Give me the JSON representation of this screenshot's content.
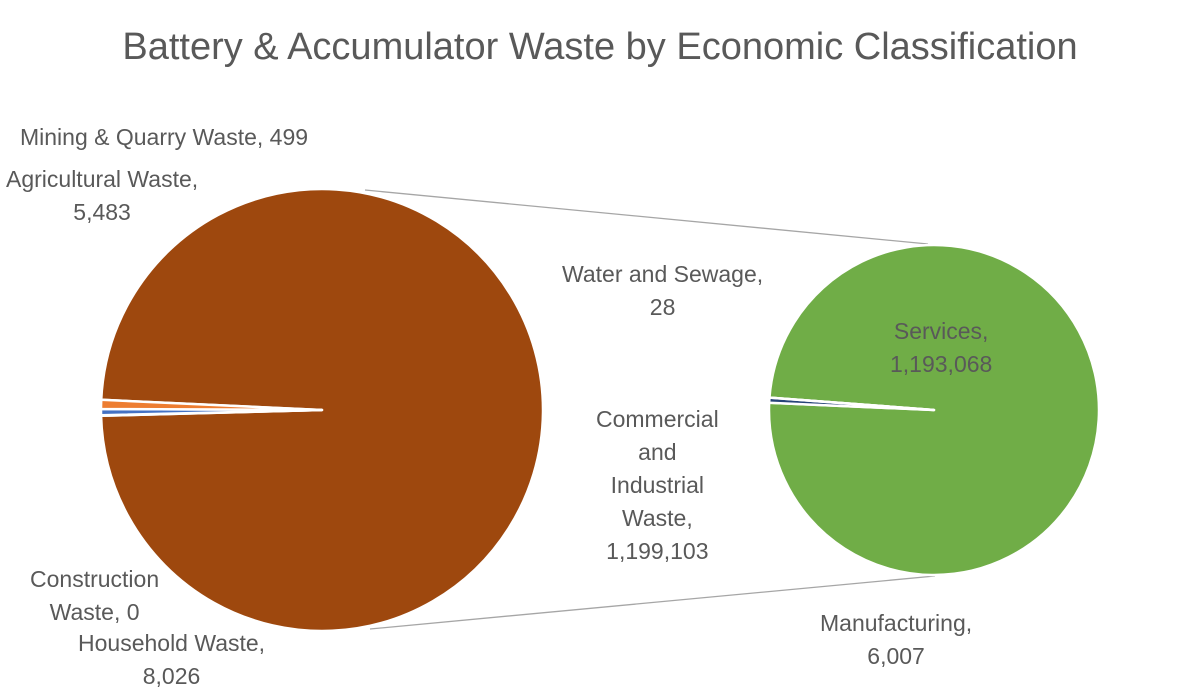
{
  "chart_data": {
    "type": "pie-of-pie",
    "title": "Battery & Accumulator  Waste by Economic Classification",
    "primary": [
      {
        "name": "Commercial and Industrial Waste",
        "value": 1199103,
        "label": "Commercial and Industrial Waste, 1,199,103",
        "color": "#9E480E"
      },
      {
        "name": "Mining & Quarry Waste",
        "value": 499,
        "label": "Mining & Quarry Waste, 499",
        "color": "#A5A5A5"
      },
      {
        "name": "Agricultural Waste",
        "value": 5483,
        "label": "Agricultural Waste, 5,483",
        "color": "#4472C4"
      },
      {
        "name": "Construction Waste",
        "value": 0,
        "label": "Construction Waste, 0",
        "color": "#FFC000"
      },
      {
        "name": "Household Waste",
        "value": 8026,
        "label": "Household Waste, 8,026",
        "color": "#ED7D31"
      }
    ],
    "secondary": [
      {
        "name": "Services",
        "value": 1193068,
        "label": "Services, 1,193,068",
        "color": "#70AD47"
      },
      {
        "name": "Manufacturing",
        "value": 6007,
        "label": "Manufacturing, 6,007",
        "color": "#264478"
      },
      {
        "name": "Water and Sewage",
        "value": 28,
        "label": "Water and Sewage, 28",
        "color": "#636363"
      }
    ],
    "legend": "none"
  },
  "labels": {
    "mining": [
      "Mining & Quarry Waste, 499"
    ],
    "agri": [
      "Agricultural Waste,",
      "5,483"
    ],
    "construction": [
      "Construction",
      "Waste, 0"
    ],
    "household": [
      "Household Waste,",
      "8,026"
    ],
    "water": [
      "Water and Sewage,",
      "28"
    ],
    "ci": [
      "Commercial",
      "and",
      "Industrial",
      "Waste,",
      "1,199,103"
    ],
    "services": [
      "Services,",
      "1,193,068"
    ],
    "manufacturing": [
      "Manufacturing,",
      "6,007"
    ]
  }
}
